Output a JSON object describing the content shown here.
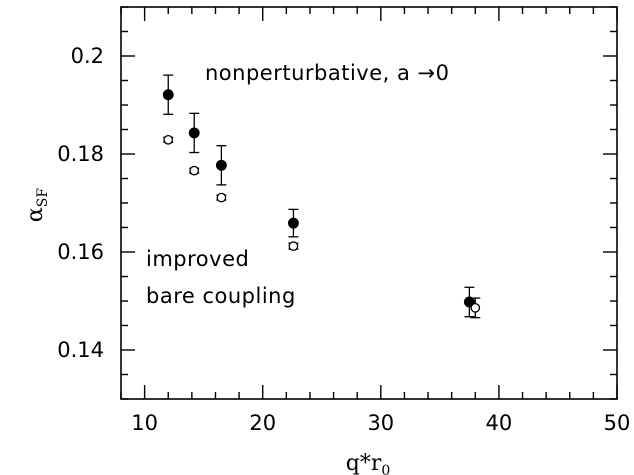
{
  "chart_data": {
    "type": "scatter",
    "xlabel": "q*r",
    "xlabel_subscript": "0",
    "ylabel": "α",
    "ylabel_subscript": "SF",
    "xlim": [
      8,
      50
    ],
    "ylim": [
      0.13,
      0.21
    ],
    "xticks": [
      10,
      20,
      30,
      40,
      50
    ],
    "yticks": [
      0.14,
      0.16,
      0.18,
      0.2
    ],
    "ytick_labels": [
      "0.14",
      "0.16",
      "0.18",
      "0.2"
    ],
    "grid": false,
    "annotations": [
      "nonperturbative, a →0",
      "improved",
      "bare coupling"
    ],
    "series": [
      {
        "marker": "filled-circle",
        "points": [
          {
            "x": 12.0,
            "y": 0.1921,
            "err": 0.004
          },
          {
            "x": 14.2,
            "y": 0.1843,
            "err": 0.004
          },
          {
            "x": 16.5,
            "y": 0.1777,
            "err": 0.004
          },
          {
            "x": 22.6,
            "y": 0.1659,
            "err": 0.0028
          },
          {
            "x": 37.5,
            "y": 0.1498,
            "err": 0.003
          }
        ]
      },
      {
        "marker": "open-circle",
        "points": [
          {
            "x": 12.0,
            "y": 0.1829,
            "err": 0.0005
          },
          {
            "x": 14.2,
            "y": 0.1766,
            "err": 0.0005
          },
          {
            "x": 16.5,
            "y": 0.1711,
            "err": 0.0005
          },
          {
            "x": 22.6,
            "y": 0.1612,
            "err": 0.0006
          },
          {
            "x": 38.0,
            "y": 0.1486,
            "err": 0.002
          }
        ]
      }
    ]
  }
}
